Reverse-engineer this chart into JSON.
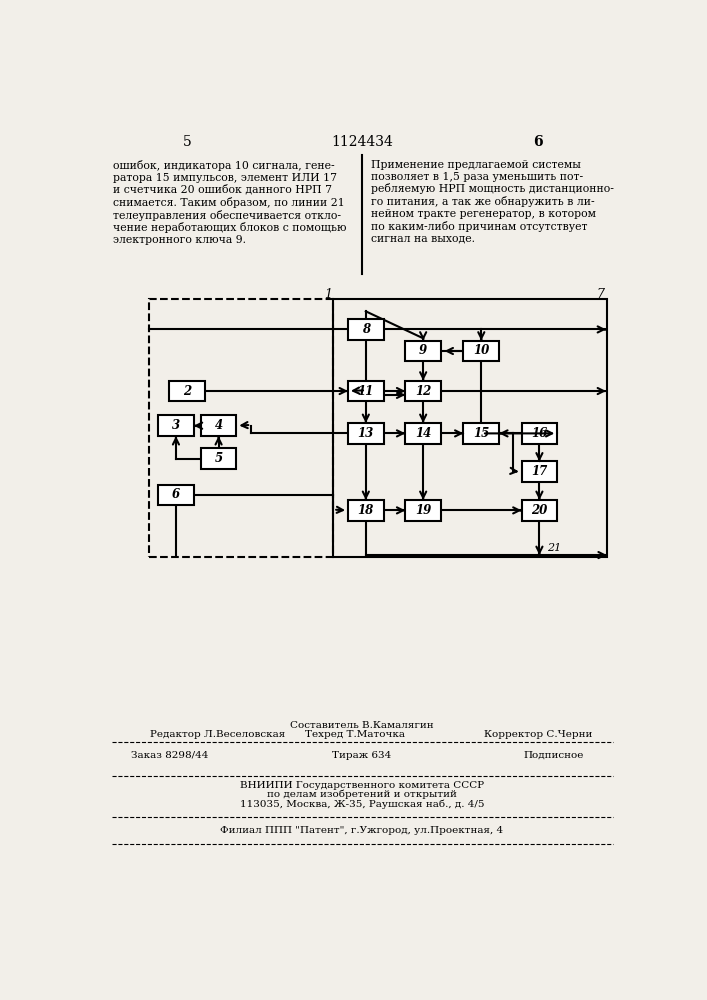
{
  "page_number_left": "5",
  "page_number_center": "1124434",
  "page_number_right": "6",
  "text_left": "ошибок, индикатора 10 сигнала, гене-\nратора 15 импульсов, элемент ИЛИ 17\nи счетчика 20 ошибок данного НРП 7\nснимается. Таким образом, по линии 21\nтелеуправления обеспечивается откло-\nчение неработающих блоков с помощью\nэлектронного ключа 9.",
  "text_right": "Применение предлагаемой системы\nпозволяет в 1,5 раза уменьшить пот-\nребляемую НРП мощность дистанционно-\nго питания, а так же обнаружить в ли-\nнейном тракте регенератор, в котором\nпо каким-либо причинам отсутствует\nсигнал на выходе.",
  "footer_comp": "Составитель В.Камалягин",
  "footer_editor": "Редактор Л.Веселовская",
  "footer_tech": "Техред Т.Маточка",
  "footer_corr": "Корректор С.Черни",
  "footer_order": "Заказ 8298/44",
  "footer_print": "Тираж 634",
  "footer_sub": "Подписное",
  "footer_org1": "ВНИИПИ Государственного комитета СССР",
  "footer_org2": "по делам изобретений и открытий",
  "footer_org3": "113035, Москва, Ж-35, Раушская наб., д. 4/5",
  "footer_branch": "Филиал ППП \"Патент\", г.Ужгород, ул.Проектная, 4",
  "bg_color": "#f2efe9"
}
